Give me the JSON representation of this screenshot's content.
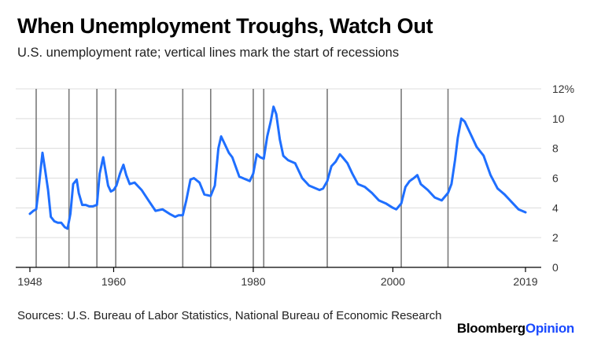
{
  "title": "When Unemployment Troughs, Watch Out",
  "subtitle": "U.S. unemployment rate; vertical lines mark the start of recessions",
  "source": "Sources: U.S. Bureau of Labor Statistics, National Bureau of Economic Research",
  "brand": {
    "part1": "Bloomberg",
    "part2": "Opinion"
  },
  "colors": {
    "line": "#1f6fff",
    "recession": "#7a7a7a",
    "grid": "#dcdcdc",
    "axis": "#000000",
    "brand_accent": "#1a4aff"
  },
  "chart_data": {
    "type": "line",
    "title": "When Unemployment Troughs, Watch Out",
    "subtitle": "U.S. unemployment rate; vertical lines mark the start of recessions",
    "xlabel": "",
    "ylabel": "",
    "xlim": [
      1948,
      2019
    ],
    "ylim": [
      0,
      12
    ],
    "x_ticks": [
      1948,
      1960,
      1980,
      2000,
      2019
    ],
    "y_ticks": [
      0,
      2,
      4,
      6,
      8,
      10,
      12
    ],
    "y_tick_labels": [
      "0",
      "2",
      "4",
      "6",
      "8",
      "10",
      "12%"
    ],
    "grid": "horizontal",
    "y_axis_position": "right",
    "recession_starts": [
      1948.9,
      1953.6,
      1957.6,
      1960.3,
      1969.9,
      1973.9,
      1980.0,
      1981.5,
      1990.6,
      2001.2,
      2007.9
    ],
    "series": [
      {
        "x": [
          1948.0,
          1948.5,
          1948.9,
          1949.2,
          1949.5,
          1949.8,
          1950.2,
          1950.6,
          1951.0,
          1951.5,
          1952.0,
          1952.5,
          1953.0,
          1953.4,
          1953.8,
          1954.2,
          1954.7,
          1955.0,
          1955.5,
          1956.0,
          1956.5,
          1957.0,
          1957.6,
          1958.0,
          1958.5,
          1958.8,
          1959.2,
          1959.6,
          1960.0,
          1960.4,
          1960.9,
          1961.4,
          1961.8,
          1962.3,
          1963.0,
          1964.0,
          1965.0,
          1966.0,
          1967.0,
          1968.0,
          1968.8,
          1969.3,
          1969.9,
          1970.4,
          1971.0,
          1971.5,
          1972.3,
          1973.0,
          1973.9,
          1974.5,
          1975.0,
          1975.4,
          1975.9,
          1976.5,
          1977.0,
          1978.0,
          1979.0,
          1979.5,
          1980.0,
          1980.5,
          1981.0,
          1981.5,
          1982.0,
          1982.5,
          1982.9,
          1983.3,
          1983.8,
          1984.3,
          1985.0,
          1986.0,
          1987.0,
          1988.0,
          1989.0,
          1989.5,
          1990.0,
          1990.6,
          1991.2,
          1991.8,
          1992.4,
          1992.8,
          1993.5,
          1994.2,
          1995.0,
          1996.0,
          1997.0,
          1998.0,
          1999.0,
          2000.0,
          2000.5,
          2001.2,
          2001.8,
          2002.4,
          2003.0,
          2003.5,
          2004.0,
          2005.0,
          2006.0,
          2007.0,
          2007.9,
          2008.4,
          2008.9,
          2009.3,
          2009.8,
          2010.3,
          2011.0,
          2012.0,
          2013.0,
          2014.0,
          2015.0,
          2016.0,
          2017.0,
          2018.0,
          2018.5,
          2019.0
        ],
        "values": [
          3.6,
          3.8,
          3.9,
          5.0,
          6.4,
          7.7,
          6.5,
          5.2,
          3.4,
          3.1,
          3.0,
          3.0,
          2.7,
          2.6,
          3.6,
          5.6,
          5.9,
          5.0,
          4.2,
          4.2,
          4.1,
          4.1,
          4.2,
          6.3,
          7.4,
          6.6,
          5.5,
          5.1,
          5.2,
          5.5,
          6.3,
          6.9,
          6.2,
          5.6,
          5.7,
          5.2,
          4.5,
          3.8,
          3.9,
          3.6,
          3.4,
          3.5,
          3.5,
          4.5,
          5.9,
          6.0,
          5.7,
          4.9,
          4.8,
          5.5,
          8.0,
          8.8,
          8.3,
          7.7,
          7.4,
          6.1,
          5.9,
          5.8,
          6.3,
          7.6,
          7.4,
          7.3,
          8.8,
          9.8,
          10.8,
          10.3,
          8.6,
          7.5,
          7.2,
          7.0,
          6.0,
          5.5,
          5.3,
          5.2,
          5.3,
          5.8,
          6.8,
          7.1,
          7.6,
          7.4,
          7.0,
          6.3,
          5.6,
          5.4,
          5.0,
          4.5,
          4.3,
          4.0,
          3.9,
          4.3,
          5.4,
          5.8,
          6.0,
          6.2,
          5.6,
          5.2,
          4.7,
          4.5,
          5.0,
          5.6,
          7.2,
          8.7,
          10.0,
          9.8,
          9.1,
          8.1,
          7.5,
          6.2,
          5.3,
          4.9,
          4.4,
          3.9,
          3.8,
          3.7
        ]
      }
    ]
  }
}
